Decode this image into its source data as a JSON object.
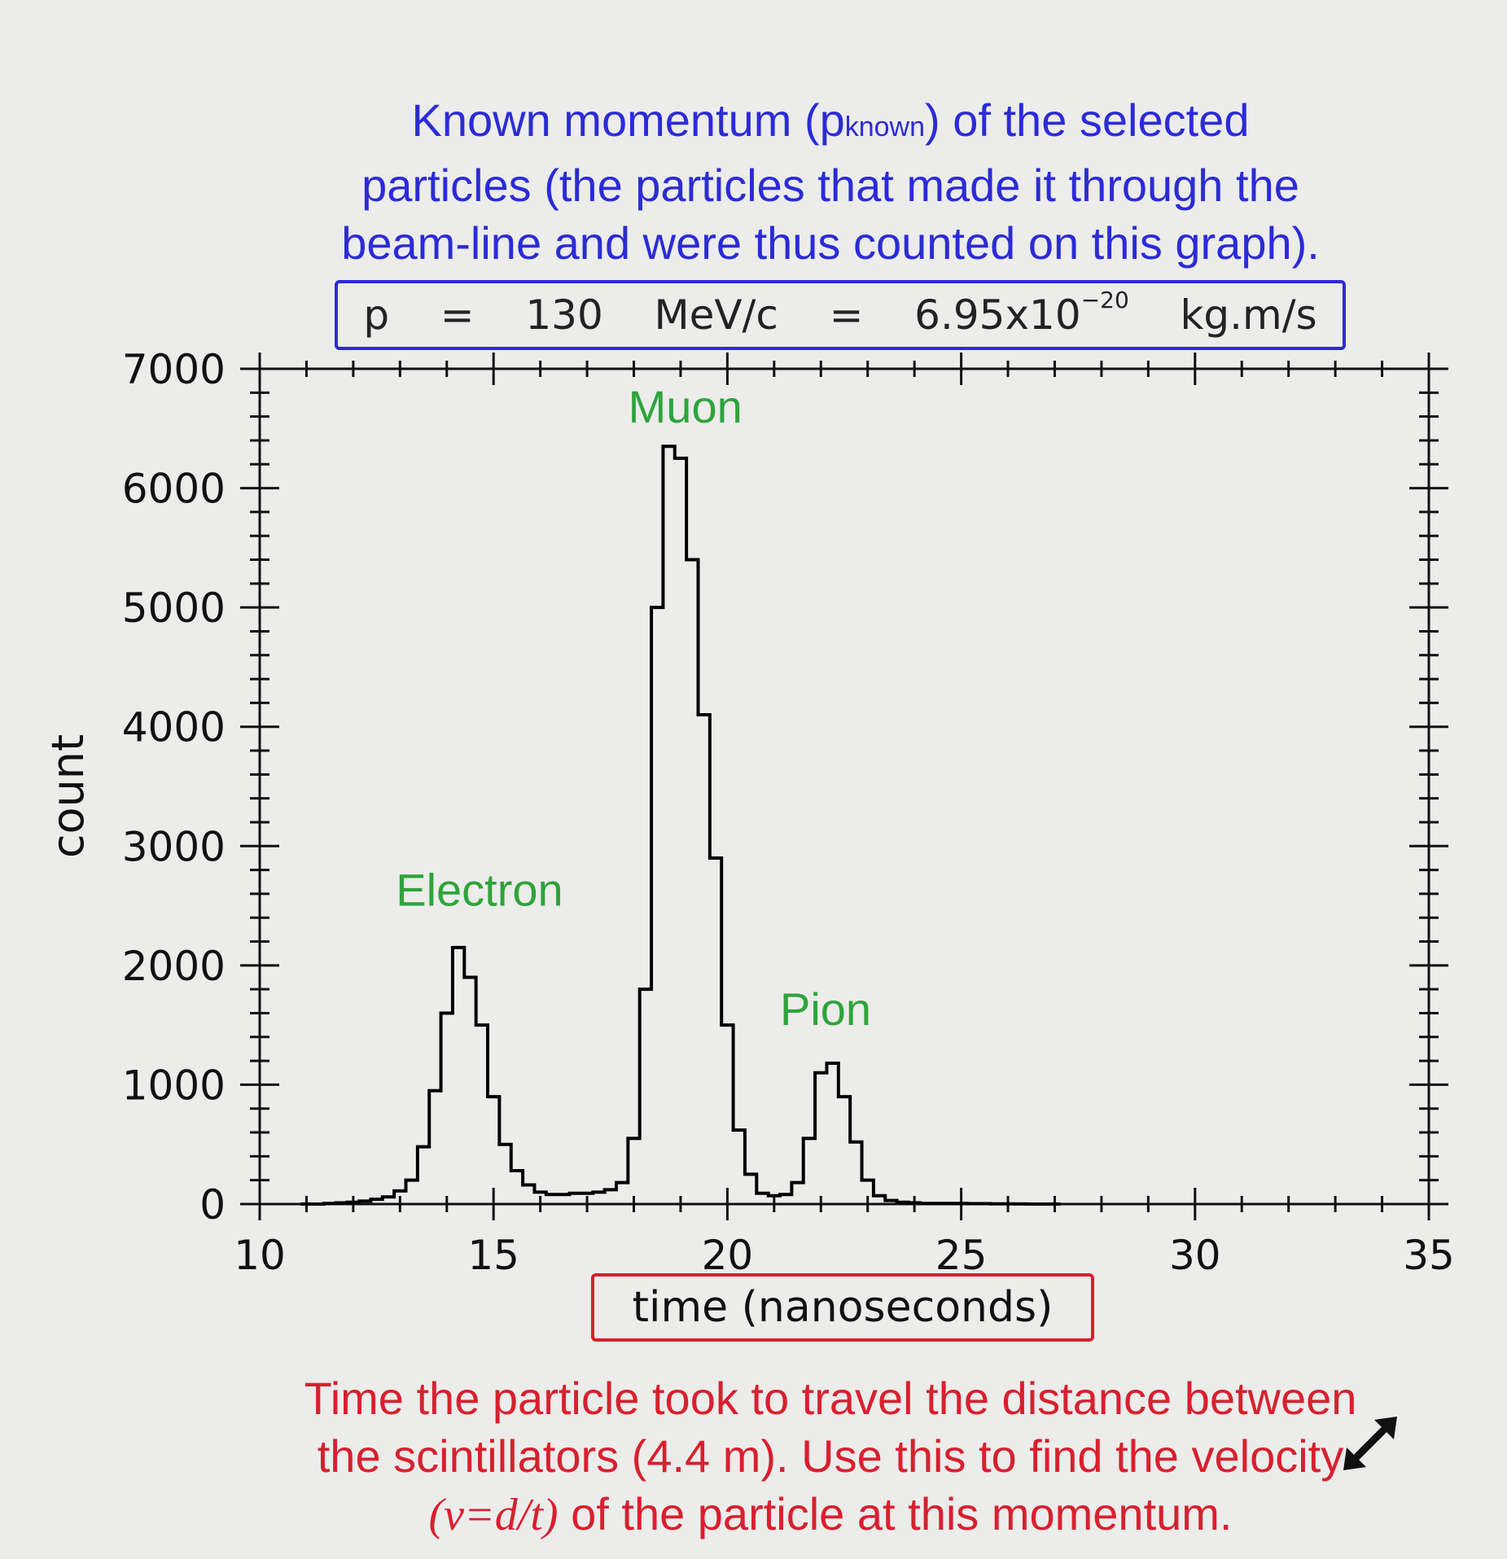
{
  "note_top": {
    "line1_before": "Known momentum (p",
    "line1_sub": "known",
    "line1_after": ") of the selected",
    "line2": "particles (the particles that made it through the",
    "line3": "beam-line and were thus counted on this graph)."
  },
  "momentum": {
    "p": "p",
    "eq1": "=",
    "value": "130",
    "unit": "MeV/c",
    "eq2": "=",
    "si_mantissa": "6.95x10",
    "si_exp": "−20",
    "si_unit": "kg.m/s"
  },
  "note_bottom": {
    "line1": "Time the particle took to travel the distance between",
    "line2": "the scintillators (4.4 m). Use this to find the velocity",
    "line3_formula": "(v=d/t)",
    "line3_rest": " of the particle at this momentum."
  },
  "icons": {
    "resize": "resize-arrows-icon"
  },
  "chart_data": {
    "type": "line",
    "style": "step-histogram",
    "xlabel": "time (nanoseconds)",
    "ylabel": "count",
    "xlim": [
      10,
      35
    ],
    "ylim": [
      0,
      7000
    ],
    "x_ticks": [
      10,
      15,
      20,
      25,
      30,
      35
    ],
    "y_ticks": [
      0,
      1000,
      2000,
      3000,
      4000,
      5000,
      6000,
      7000
    ],
    "annotations": [
      {
        "text": "Electron",
        "x": 14.7,
        "y": 2500
      },
      {
        "text": "Muon",
        "x": 19.1,
        "y": 6550
      },
      {
        "text": "Pion",
        "x": 22.1,
        "y": 1500
      }
    ],
    "line_color": "#000000",
    "series": [
      {
        "bin_width": 0.25,
        "x": [
          11.0,
          11.25,
          11.5,
          11.75,
          12.0,
          12.25,
          12.5,
          12.75,
          13.0,
          13.25,
          13.5,
          13.75,
          14.0,
          14.25,
          14.5,
          14.75,
          15.0,
          15.25,
          15.5,
          15.75,
          16.0,
          16.25,
          16.5,
          16.75,
          17.0,
          17.25,
          17.5,
          17.75,
          18.0,
          18.25,
          18.5,
          18.75,
          19.0,
          19.25,
          19.5,
          19.75,
          20.0,
          20.25,
          20.5,
          20.75,
          21.0,
          21.25,
          21.5,
          21.75,
          22.0,
          22.25,
          22.5,
          22.75,
          23.0,
          23.25,
          23.5,
          23.75,
          24.0,
          24.25,
          24.5,
          24.75,
          25.0,
          25.25,
          25.5,
          25.75,
          26.0,
          26.25,
          26.5,
          26.75,
          27.0
        ],
        "y": [
          0,
          0,
          5,
          10,
          15,
          25,
          40,
          60,
          110,
          200,
          480,
          950,
          1600,
          2150,
          1900,
          1500,
          900,
          500,
          280,
          160,
          100,
          80,
          80,
          90,
          90,
          100,
          120,
          180,
          550,
          1800,
          5000,
          6350,
          6250,
          5400,
          4100,
          2900,
          1500,
          620,
          250,
          90,
          70,
          80,
          180,
          550,
          1100,
          1180,
          900,
          520,
          200,
          70,
          30,
          15,
          10,
          5,
          5,
          5,
          5,
          3,
          3,
          2,
          2,
          1,
          0,
          0,
          0
        ]
      }
    ]
  }
}
